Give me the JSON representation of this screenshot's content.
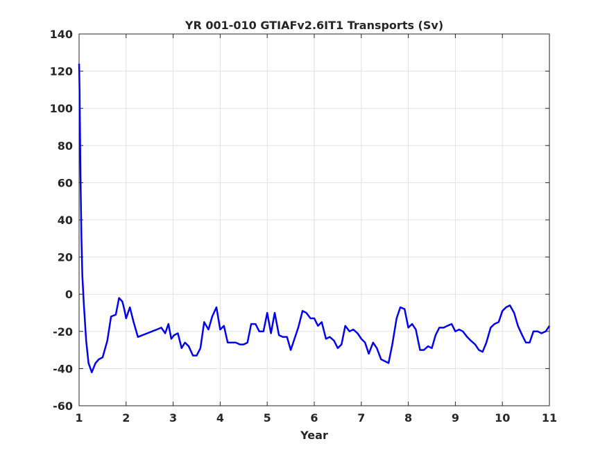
{
  "chart_data": {
    "type": "line",
    "title": "YR 001-010 GTIAFv2.6IT1 Transports (Sv)",
    "xlabel": "Year",
    "ylabel": "",
    "xlim": [
      1,
      11
    ],
    "ylim": [
      -60,
      140
    ],
    "xticks": [
      1,
      2,
      3,
      4,
      5,
      6,
      7,
      8,
      9,
      10,
      11
    ],
    "yticks": [
      -60,
      -40,
      -20,
      0,
      20,
      40,
      60,
      80,
      100,
      120,
      140
    ],
    "grid": true,
    "line_color": "#0000ee",
    "series": [
      {
        "x": [
          1.0,
          1.01,
          1.03,
          1.05,
          1.07,
          1.1,
          1.15,
          1.2,
          1.27,
          1.35,
          1.42,
          1.5,
          1.6,
          1.68,
          1.78,
          1.85,
          1.92,
          1.96,
          2.0,
          2.08,
          2.16,
          2.25,
          2.35,
          2.45,
          2.55,
          2.65,
          2.75,
          2.83,
          2.9,
          2.96,
          3.02,
          3.1,
          3.18,
          3.25,
          3.33,
          3.42,
          3.5,
          3.58,
          3.66,
          3.75,
          3.83,
          3.92,
          4.0,
          4.08,
          4.16,
          4.25,
          4.33,
          4.42,
          4.5,
          4.58,
          4.66,
          4.75,
          4.83,
          4.92,
          5.0,
          5.08,
          5.16,
          5.25,
          5.33,
          5.42,
          5.5,
          5.58,
          5.66,
          5.75,
          5.83,
          5.92,
          6.0,
          6.08,
          6.16,
          6.25,
          6.33,
          6.42,
          6.5,
          6.58,
          6.66,
          6.75,
          6.83,
          6.92,
          7.0,
          7.08,
          7.16,
          7.25,
          7.33,
          7.42,
          7.5,
          7.58,
          7.66,
          7.75,
          7.83,
          7.92,
          7.96,
          8.0,
          8.08,
          8.16,
          8.25,
          8.33,
          8.42,
          8.5,
          8.58,
          8.66,
          8.75,
          8.83,
          8.92,
          9.0,
          9.08,
          9.16,
          9.25,
          9.33,
          9.42,
          9.5,
          9.58,
          9.66,
          9.75,
          9.83,
          9.92,
          10.0,
          10.08,
          10.16,
          10.25,
          10.33,
          10.42,
          10.5,
          10.58,
          10.66,
          10.75,
          10.83,
          10.92,
          11.0
        ],
        "values": [
          124,
          110,
          65,
          30,
          10,
          -5,
          -25,
          -37,
          -42,
          -37,
          -35,
          -34,
          -25,
          -12,
          -11,
          -2,
          -4,
          -8,
          -13,
          -7,
          -15,
          -23,
          -22,
          -21,
          -20,
          -19,
          -18,
          -21,
          -16,
          -24,
          -22,
          -21,
          -29,
          -26,
          -28,
          -33,
          -33,
          -29,
          -15,
          -19,
          -12,
          -7,
          -19,
          -17,
          -26,
          -26,
          -26,
          -27,
          -27,
          -26,
          -16,
          -16,
          -20,
          -20,
          -10,
          -21,
          -10,
          -22,
          -23,
          -23,
          -30,
          -24,
          -18,
          -9,
          -10,
          -13,
          -13,
          -17,
          -15,
          -24,
          -23,
          -25,
          -29,
          -27,
          -17,
          -20,
          -19,
          -21,
          -24,
          -26,
          -32,
          -26,
          -29,
          -35,
          -36,
          -37,
          -27,
          -13,
          -7,
          -8,
          -13,
          -18,
          -16,
          -19,
          -30,
          -30,
          -28,
          -29,
          -22,
          -18,
          -18,
          -17,
          -16,
          -20,
          -19,
          -20,
          -23,
          -25,
          -27,
          -30,
          -31,
          -26,
          -18,
          -16,
          -15,
          -9,
          -7,
          -6,
          -10,
          -17,
          -22,
          -26,
          -26,
          -20,
          -20,
          -21,
          -20,
          -17
        ]
      }
    ]
  }
}
